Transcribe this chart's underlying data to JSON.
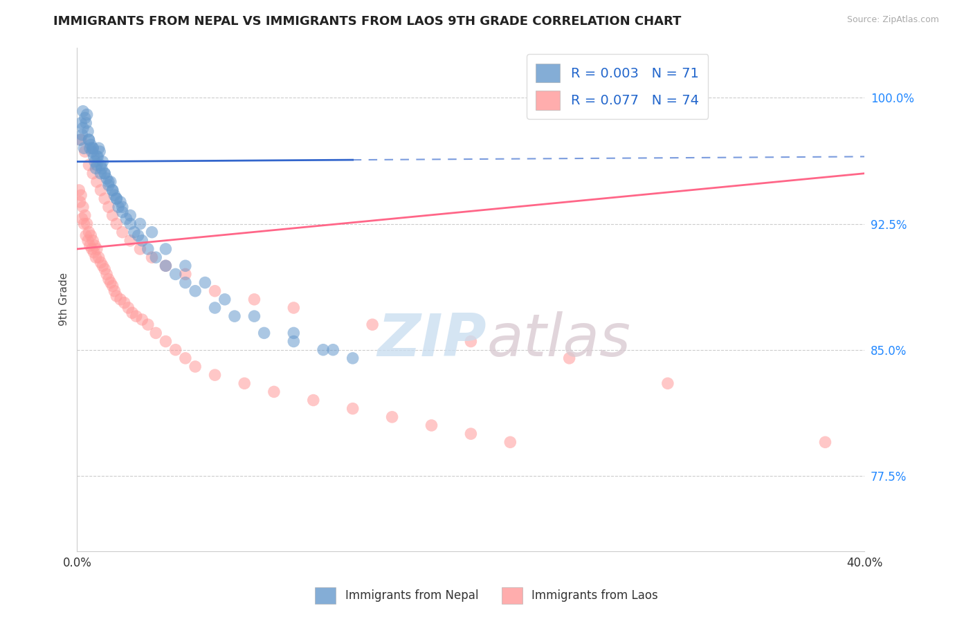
{
  "title": "IMMIGRANTS FROM NEPAL VS IMMIGRANTS FROM LAOS 9TH GRADE CORRELATION CHART",
  "source": "Source: ZipAtlas.com",
  "ylabel": "9th Grade",
  "yticks": [
    77.5,
    85.0,
    92.5,
    100.0
  ],
  "ytick_labels": [
    "77.5%",
    "85.0%",
    "92.5%",
    "100.0%"
  ],
  "xlim": [
    0.0,
    40.0
  ],
  "ylim": [
    73.0,
    103.0
  ],
  "nepal_R": 0.003,
  "nepal_N": 71,
  "laos_R": 0.077,
  "laos_N": 74,
  "nepal_color": "#6699CC",
  "laos_color": "#FF9999",
  "nepal_line_color": "#3366CC",
  "laos_line_color": "#FF6688",
  "legend_label_nepal": "Immigrants from Nepal",
  "legend_label_laos": "Immigrants from Laos",
  "nepal_trend_y0": 96.2,
  "nepal_trend_y1": 96.5,
  "nepal_solid_end": 14.0,
  "laos_trend_y0": 91.0,
  "laos_trend_y1": 95.5,
  "nepal_x": [
    0.15,
    0.2,
    0.25,
    0.3,
    0.35,
    0.4,
    0.5,
    0.55,
    0.6,
    0.65,
    0.7,
    0.75,
    0.8,
    0.85,
    0.9,
    0.95,
    1.0,
    1.05,
    1.1,
    1.15,
    1.2,
    1.25,
    1.3,
    1.4,
    1.5,
    1.6,
    1.7,
    1.8,
    1.9,
    2.0,
    2.1,
    2.2,
    2.3,
    2.5,
    2.7,
    2.9,
    3.1,
    3.3,
    3.6,
    4.0,
    4.5,
    5.0,
    5.5,
    6.0,
    7.0,
    8.0,
    9.5,
    11.0,
    12.5,
    14.0,
    0.3,
    0.45,
    0.6,
    0.8,
    1.0,
    1.2,
    1.4,
    1.6,
    1.8,
    2.0,
    2.3,
    2.7,
    3.2,
    3.8,
    4.5,
    5.5,
    6.5,
    7.5,
    9.0,
    11.0,
    13.0
  ],
  "nepal_y": [
    97.5,
    98.5,
    97.8,
    98.2,
    97.0,
    98.8,
    99.0,
    98.0,
    97.5,
    97.0,
    97.2,
    96.8,
    97.0,
    96.5,
    96.2,
    95.8,
    96.0,
    96.5,
    97.0,
    96.8,
    95.5,
    95.8,
    96.2,
    95.5,
    95.2,
    94.8,
    95.0,
    94.5,
    94.2,
    94.0,
    93.5,
    93.8,
    93.2,
    92.8,
    92.5,
    92.0,
    91.8,
    91.5,
    91.0,
    90.5,
    90.0,
    89.5,
    89.0,
    88.5,
    87.5,
    87.0,
    86.0,
    85.5,
    85.0,
    84.5,
    99.2,
    98.5,
    97.5,
    97.0,
    96.5,
    96.0,
    95.5,
    95.0,
    94.5,
    94.0,
    93.5,
    93.0,
    92.5,
    92.0,
    91.0,
    90.0,
    89.0,
    88.0,
    87.0,
    86.0,
    85.0
  ],
  "laos_x": [
    0.1,
    0.15,
    0.2,
    0.25,
    0.3,
    0.35,
    0.4,
    0.45,
    0.5,
    0.55,
    0.6,
    0.65,
    0.7,
    0.75,
    0.8,
    0.85,
    0.9,
    0.95,
    1.0,
    1.1,
    1.2,
    1.3,
    1.4,
    1.5,
    1.6,
    1.7,
    1.8,
    1.9,
    2.0,
    2.2,
    2.4,
    2.6,
    2.8,
    3.0,
    3.3,
    3.6,
    4.0,
    4.5,
    5.0,
    5.5,
    6.0,
    7.0,
    8.5,
    10.0,
    12.0,
    14.0,
    16.0,
    18.0,
    20.0,
    22.0,
    0.2,
    0.4,
    0.6,
    0.8,
    1.0,
    1.2,
    1.4,
    1.6,
    1.8,
    2.0,
    2.3,
    2.7,
    3.2,
    3.8,
    4.5,
    5.5,
    7.0,
    9.0,
    11.0,
    15.0,
    20.0,
    25.0,
    30.0,
    38.0
  ],
  "laos_y": [
    94.5,
    93.8,
    94.2,
    92.8,
    93.5,
    92.5,
    93.0,
    91.8,
    92.5,
    91.5,
    92.0,
    91.2,
    91.8,
    91.0,
    91.5,
    90.8,
    91.2,
    90.5,
    91.0,
    90.5,
    90.2,
    90.0,
    89.8,
    89.5,
    89.2,
    89.0,
    88.8,
    88.5,
    88.2,
    88.0,
    87.8,
    87.5,
    87.2,
    87.0,
    86.8,
    86.5,
    86.0,
    85.5,
    85.0,
    84.5,
    84.0,
    83.5,
    83.0,
    82.5,
    82.0,
    81.5,
    81.0,
    80.5,
    80.0,
    79.5,
    97.5,
    96.8,
    96.0,
    95.5,
    95.0,
    94.5,
    94.0,
    93.5,
    93.0,
    92.5,
    92.0,
    91.5,
    91.0,
    90.5,
    90.0,
    89.5,
    88.5,
    88.0,
    87.5,
    86.5,
    85.5,
    84.5,
    83.0,
    79.5
  ]
}
